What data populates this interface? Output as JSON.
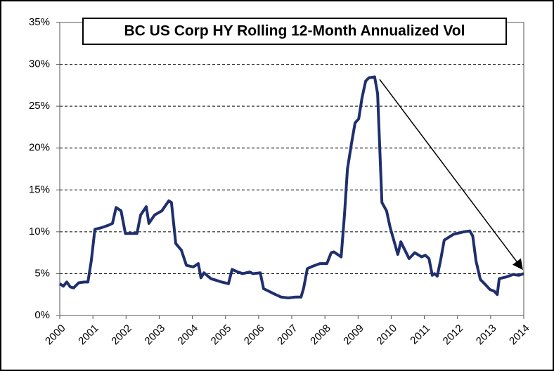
{
  "chart_data": {
    "type": "line",
    "title": "BC US Corp HY Rolling 12-Month Annualized Vol",
    "series": [
      {
        "name": "BC US Corp HY",
        "color": "#1f2f6e",
        "x": [
          2000.0,
          2000.11,
          2000.21,
          2000.32,
          2000.42,
          2000.57,
          2000.74,
          2000.85,
          2000.91,
          2000.95,
          2001.06,
          2001.27,
          2001.48,
          2001.59,
          2001.7,
          2001.85,
          2001.98,
          2002.33,
          2002.44,
          2002.61,
          2002.69,
          2002.86,
          2003.08,
          2003.29,
          2003.37,
          2003.5,
          2003.67,
          2003.82,
          2004.03,
          2004.18,
          2004.26,
          2004.35,
          2004.56,
          2004.88,
          2005.09,
          2005.2,
          2005.37,
          2005.52,
          2005.73,
          2005.83,
          2006.05,
          2006.15,
          2006.36,
          2006.51,
          2006.68,
          2006.89,
          2007.11,
          2007.28,
          2007.36,
          2007.47,
          2007.64,
          2007.85,
          2008.06,
          2008.19,
          2008.27,
          2008.49,
          2008.59,
          2008.68,
          2008.8,
          2008.91,
          2009.02,
          2009.12,
          2009.23,
          2009.33,
          2009.5,
          2009.59,
          2009.72,
          2009.86,
          2009.97,
          2010.2,
          2010.29,
          2010.39,
          2010.54,
          2010.71,
          2010.92,
          2011.03,
          2011.14,
          2011.24,
          2011.31,
          2011.39,
          2011.5,
          2011.6,
          2011.88,
          2012.2,
          2012.37,
          2012.46,
          2012.56,
          2012.69,
          2012.84,
          2012.98,
          2013.11,
          2013.2,
          2013.26,
          2013.47,
          2013.68,
          2013.85,
          2014.0
        ],
        "values": [
          3.8,
          3.5,
          4.0,
          3.4,
          3.3,
          3.9,
          4.0,
          4.0,
          5.5,
          6.5,
          10.3,
          10.5,
          10.8,
          11.0,
          12.9,
          12.5,
          9.8,
          9.8,
          12.0,
          13.0,
          11.0,
          12.0,
          12.5,
          13.7,
          13.5,
          8.6,
          7.8,
          6.0,
          5.8,
          6.2,
          4.5,
          5.1,
          4.4,
          4.0,
          3.8,
          5.5,
          5.2,
          5.0,
          5.2,
          5.0,
          5.1,
          3.2,
          2.8,
          2.5,
          2.2,
          2.1,
          2.2,
          2.2,
          3.3,
          5.6,
          5.9,
          6.2,
          6.2,
          7.5,
          7.6,
          7.0,
          12.0,
          17.5,
          20.5,
          23.0,
          23.5,
          26.0,
          28.0,
          28.4,
          28.5,
          26.5,
          13.5,
          12.5,
          10.5,
          7.3,
          8.8,
          8.0,
          6.8,
          7.5,
          7.0,
          7.2,
          6.8,
          4.8,
          5.0,
          4.7,
          6.8,
          9.0,
          9.7,
          10.0,
          10.1,
          9.5,
          6.5,
          4.3,
          3.7,
          3.1,
          2.9,
          2.5,
          4.4,
          4.6,
          4.9,
          4.8,
          5.0
        ]
      }
    ],
    "xlim": [
      2000,
      2014
    ],
    "xticks": [
      2000,
      2001,
      2002,
      2003,
      2004,
      2005,
      2006,
      2007,
      2008,
      2009,
      2010,
      2011,
      2012,
      2013,
      2014
    ],
    "ylim": [
      0,
      35
    ],
    "yticks": [
      {
        "value": 0,
        "label": "0%"
      },
      {
        "value": 5,
        "label": "5%"
      },
      {
        "value": 10,
        "label": "10%"
      },
      {
        "value": 15,
        "label": "15%"
      },
      {
        "value": 20,
        "label": "20%"
      },
      {
        "value": 25,
        "label": "25%"
      },
      {
        "value": 30,
        "label": "30%"
      },
      {
        "value": 35,
        "label": "35%"
      }
    ],
    "grid": true
  }
}
